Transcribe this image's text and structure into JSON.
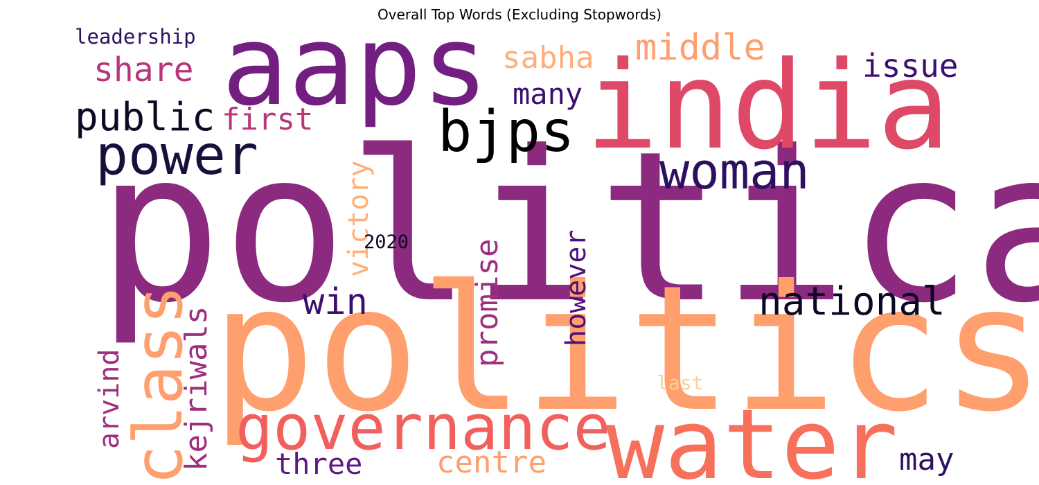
{
  "title": "Overall Top Words (Excluding Stopwords)",
  "words": [
    {
      "text": "political",
      "color": "#8b2a7e",
      "rotated": false
    },
    {
      "text": "politics",
      "color": "#fe9f6d",
      "rotated": false
    },
    {
      "text": "india",
      "color": "#de4968",
      "rotated": false
    },
    {
      "text": "aaps",
      "color": "#721f81",
      "rotated": false
    },
    {
      "text": "water",
      "color": "#f7705c",
      "rotated": false
    },
    {
      "text": "governance",
      "color": "#f1605d",
      "rotated": false
    },
    {
      "text": "bjps",
      "color": "#000004",
      "rotated": false
    },
    {
      "text": "power",
      "color": "#180f3d",
      "rotated": false
    },
    {
      "text": "woman",
      "color": "#2d1160",
      "rotated": false
    },
    {
      "text": "class",
      "color": "#fe9f6d",
      "rotated": true
    },
    {
      "text": "national",
      "color": "#0b0924",
      "rotated": false
    },
    {
      "text": "public",
      "color": "#0b0924",
      "rotated": false
    },
    {
      "text": "share",
      "color": "#b5367a",
      "rotated": false
    },
    {
      "text": "middle",
      "color": "#fe9f6d",
      "rotated": false
    },
    {
      "text": "issue",
      "color": "#3b0f70",
      "rotated": false
    },
    {
      "text": "sabha",
      "color": "#feae77",
      "rotated": false
    },
    {
      "text": "many",
      "color": "#3b0f70",
      "rotated": false
    },
    {
      "text": "first",
      "color": "#b73779",
      "rotated": false
    },
    {
      "text": "victory",
      "color": "#feb078",
      "rotated": true
    },
    {
      "text": "win",
      "color": "#3b0f70",
      "rotated": false
    },
    {
      "text": "promise",
      "color": "#9e2f7f",
      "rotated": true
    },
    {
      "text": "however",
      "color": "#4c117a",
      "rotated": true
    },
    {
      "text": "kejriwals",
      "color": "#9e2f7f",
      "rotated": true
    },
    {
      "text": "arvind",
      "color": "#9e2f7f",
      "rotated": true
    },
    {
      "text": "centre",
      "color": "#fe9f6d",
      "rotated": false
    },
    {
      "text": "three",
      "color": "#5f187f",
      "rotated": false
    },
    {
      "text": "may",
      "color": "#2d1160",
      "rotated": false
    },
    {
      "text": "leadership",
      "color": "#2d1160",
      "rotated": false
    },
    {
      "text": "2020",
      "color": "#0b0924",
      "rotated": false
    },
    {
      "text": "last",
      "color": "#fecf92",
      "rotated": false
    }
  ]
}
